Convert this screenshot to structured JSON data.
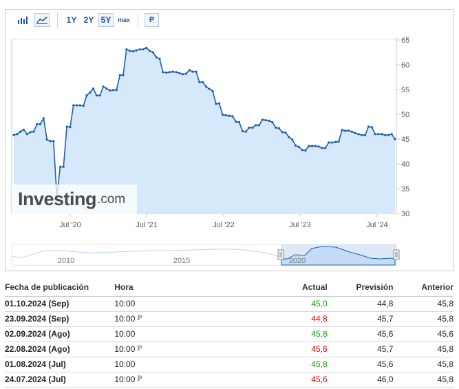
{
  "toolbar": {
    "range_buttons": [
      "1Y",
      "2Y",
      "5Y",
      "max"
    ],
    "active_range": "5Y",
    "p_button": "P",
    "chart_types": [
      "bar-chart-icon",
      "area-chart-icon"
    ]
  },
  "chart_data": {
    "type": "area",
    "title": "",
    "xlabel": "",
    "ylabel": "",
    "ylim": [
      30,
      65
    ],
    "yticks": [
      30,
      35,
      40,
      45,
      50,
      55,
      60,
      65
    ],
    "x_tick_labels": [
      "Jul '20",
      "Jul '21",
      "Jul '22",
      "Jul '23",
      "Jul '24"
    ],
    "grid": false,
    "colors": {
      "line": "#1e5fa8",
      "fill": "#d6e9fb"
    },
    "series": [
      {
        "values": [
          45.8,
          46.0,
          46.5,
          46.9,
          46.0,
          46.4,
          46.5,
          48.0,
          48.0,
          49.2,
          44.9,
          44.6,
          44.6,
          33.4,
          39.4,
          39.4,
          47.5,
          47.4,
          51.8,
          51.8,
          51.8,
          51.7,
          53.8,
          54.4,
          55.2,
          53.8,
          53.8,
          55.6,
          55.2,
          54.8,
          54.9,
          54.9,
          57.9,
          57.9,
          63.1,
          62.8,
          62.7,
          62.9,
          63.1,
          63.1,
          63.4,
          62.8,
          62.5,
          61.5,
          61.2,
          58.5,
          58.4,
          58.5,
          58.6,
          58.5,
          58.3,
          58.1,
          58.2,
          58.9,
          58.6,
          58.6,
          56.5,
          56.5,
          55.6,
          55.1,
          54.7,
          52.1,
          52.2,
          49.9,
          49.8,
          49.7,
          49.6,
          48.5,
          48.4,
          46.6,
          46.5,
          47.3,
          47.3,
          47.8,
          47.8,
          48.9,
          48.8,
          48.7,
          48.4,
          47.3,
          47.2,
          46.4,
          46.3,
          45.4,
          44.9,
          43.7,
          43.4,
          42.8,
          42.7,
          43.6,
          43.6,
          43.6,
          43.5,
          43.2,
          43.2,
          44.3,
          44.3,
          44.4,
          44.5,
          46.8,
          46.7,
          46.7,
          46.5,
          46.2,
          46.0,
          45.8,
          45.8,
          47.5,
          47.4,
          46.0,
          46.0,
          46.0,
          45.8,
          45.8,
          46.0,
          45.0
        ]
      }
    ]
  },
  "navigator": {
    "year_labels": [
      "2010",
      "2015",
      "2020"
    ]
  },
  "logo": {
    "brand": "Investing",
    "domain": ".com"
  },
  "table": {
    "headers": {
      "date": "Fecha de publicación",
      "time": "Hora",
      "actual": "Actual",
      "forecast": "Previsión",
      "previous": "Anterior"
    },
    "rows": [
      {
        "date": "01.10.2024 (Sep)",
        "time": "10:00",
        "prelim": "",
        "actual": "45,0",
        "actual_status": "pos",
        "forecast": "44,8",
        "previous": "45,8"
      },
      {
        "date": "23.09.2024 (Sep)",
        "time": "10:00",
        "prelim": "P",
        "actual": "44,8",
        "actual_status": "neg",
        "forecast": "45,7",
        "previous": "45,8"
      },
      {
        "date": "02.09.2024 (Ago)",
        "time": "10:00",
        "prelim": "",
        "actual": "45,8",
        "actual_status": "pos",
        "forecast": "45,6",
        "previous": "45,6"
      },
      {
        "date": "22.08.2024 (Ago)",
        "time": "10:00",
        "prelim": "P",
        "actual": "45,6",
        "actual_status": "neg",
        "forecast": "45,7",
        "previous": "45,8"
      },
      {
        "date": "01.08.2024 (Jul)",
        "time": "10:00",
        "prelim": "",
        "actual": "45,8",
        "actual_status": "pos",
        "forecast": "45,6",
        "previous": "45,8"
      },
      {
        "date": "24.07.2024 (Jul)",
        "time": "10:00",
        "prelim": "P",
        "actual": "45,6",
        "actual_status": "neg",
        "forecast": "46,0",
        "previous": "45,8"
      }
    ]
  }
}
